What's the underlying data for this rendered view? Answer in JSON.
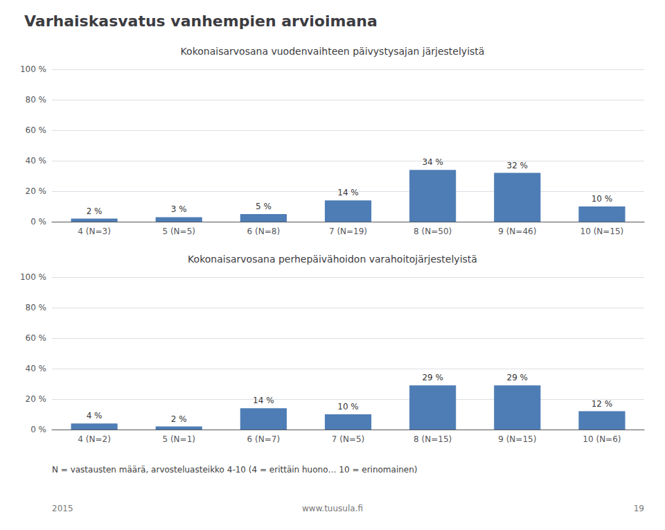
{
  "title": "Varhaiskasvatus vanhempien arvioimana",
  "annotations": [
    "N = vastausten määrä, arvosteluasteikko 4-10 (4 = erittäin huono… 10 = erinomainen)",
    "2015",
    "www.tuusula.fi",
    "19"
  ],
  "chart_data": [
    {
      "type": "bar",
      "title": "Kokonaisarvosana vuodenvaihteen päivystysajan järjestelyistä",
      "categories": [
        "4 (N=3)",
        "5 (N=5)",
        "6 (N=8)",
        "7 (N=19)",
        "8 (N=50)",
        "9 (N=46)",
        "10 (N=15)"
      ],
      "values": [
        2,
        3,
        5,
        14,
        34,
        32,
        10
      ],
      "value_labels": [
        "2 %",
        "3 %",
        "5 %",
        "14 %",
        "34 %",
        "32 %",
        "10 %"
      ],
      "data_labels": true,
      "color": "#4e7db5",
      "ylim": [
        0,
        100
      ],
      "yticks": [
        {
          "value": 0,
          "label": "0 %"
        },
        {
          "value": 20,
          "label": "20 %"
        },
        {
          "value": 40,
          "label": "40 %"
        },
        {
          "value": 60,
          "label": "60 %"
        },
        {
          "value": 80,
          "label": "80 %"
        },
        {
          "value": 100,
          "label": "100 %"
        }
      ],
      "grid": true
    },
    {
      "type": "bar",
      "title": "Kokonaisarvosana perhepäivähoidon varahoitojärjestelyistä",
      "categories": [
        "4 (N=2)",
        "5 (N=1)",
        "6 (N=7)",
        "7 (N=5)",
        "8 (N=15)",
        "9 (N=15)",
        "10 (N=6)"
      ],
      "values": [
        4,
        2,
        14,
        10,
        29,
        29,
        12
      ],
      "value_labels": [
        "4 %",
        "2 %",
        "14 %",
        "10 %",
        "29 %",
        "29 %",
        "12 %"
      ],
      "data_labels": true,
      "color": "#4e7db5",
      "ylim": [
        0,
        100
      ],
      "yticks": [
        {
          "value": 0,
          "label": "0 %"
        },
        {
          "value": 20,
          "label": "20 %"
        },
        {
          "value": 40,
          "label": "40 %"
        },
        {
          "value": 60,
          "label": "60 %"
        },
        {
          "value": 80,
          "label": "80 %"
        },
        {
          "value": 100,
          "label": "100 %"
        }
      ],
      "grid": true
    }
  ]
}
